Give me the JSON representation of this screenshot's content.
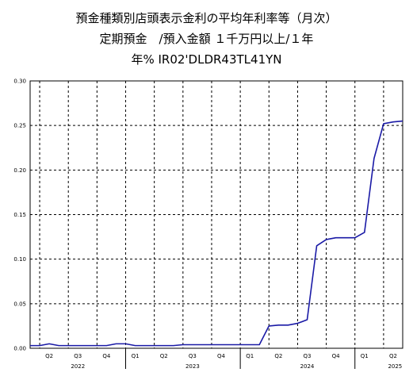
{
  "chart_data": {
    "type": "line",
    "title": "預金種類別店頭表示金利の平均年利率等（月次）",
    "subtitle": "定期預金　/預入金額 １千万円以上/１年",
    "series_code": "年% IR02'DLDR43TL41YN",
    "xlabel": "",
    "ylabel": "",
    "ylim": [
      0,
      0.3
    ],
    "yticks": [
      "0.00",
      "0.05",
      "0.10",
      "0.15",
      "0.20",
      "0.25",
      "0.30"
    ],
    "x_start": "2022-03",
    "x_end": "2025-06",
    "quarter_ticks": [
      "Q2",
      "Q3",
      "Q4",
      "Q1",
      "Q2",
      "Q3",
      "Q4",
      "Q1",
      "Q2",
      "Q3",
      "Q4",
      "Q1",
      "Q2"
    ],
    "year_labels": [
      "2022",
      "2023",
      "2024",
      "2025"
    ],
    "grid": true,
    "series": [
      {
        "color": "#1a1aa6",
        "x": [
          "2022-03",
          "2022-04",
          "2022-05",
          "2022-06",
          "2022-07",
          "2022-08",
          "2022-09",
          "2022-10",
          "2022-11",
          "2022-12",
          "2023-01",
          "2023-02",
          "2023-03",
          "2023-04",
          "2023-05",
          "2023-06",
          "2023-07",
          "2023-08",
          "2023-09",
          "2023-10",
          "2023-11",
          "2023-12",
          "2024-01",
          "2024-02",
          "2024-03",
          "2024-04",
          "2024-05",
          "2024-06",
          "2024-07",
          "2024-08",
          "2024-09",
          "2024-10",
          "2024-11",
          "2024-12",
          "2025-01",
          "2025-02",
          "2025-03",
          "2025-04",
          "2025-05",
          "2025-06"
        ],
        "values": [
          0.003,
          0.003,
          0.005,
          0.003,
          0.003,
          0.003,
          0.003,
          0.003,
          0.003,
          0.005,
          0.005,
          0.003,
          0.003,
          0.003,
          0.003,
          0.003,
          0.004,
          0.004,
          0.004,
          0.004,
          0.004,
          0.004,
          0.004,
          0.004,
          0.004,
          0.025,
          0.026,
          0.026,
          0.028,
          0.032,
          0.115,
          0.122,
          0.124,
          0.124,
          0.124,
          0.13,
          0.213,
          0.252,
          0.254,
          0.255
        ]
      }
    ]
  }
}
